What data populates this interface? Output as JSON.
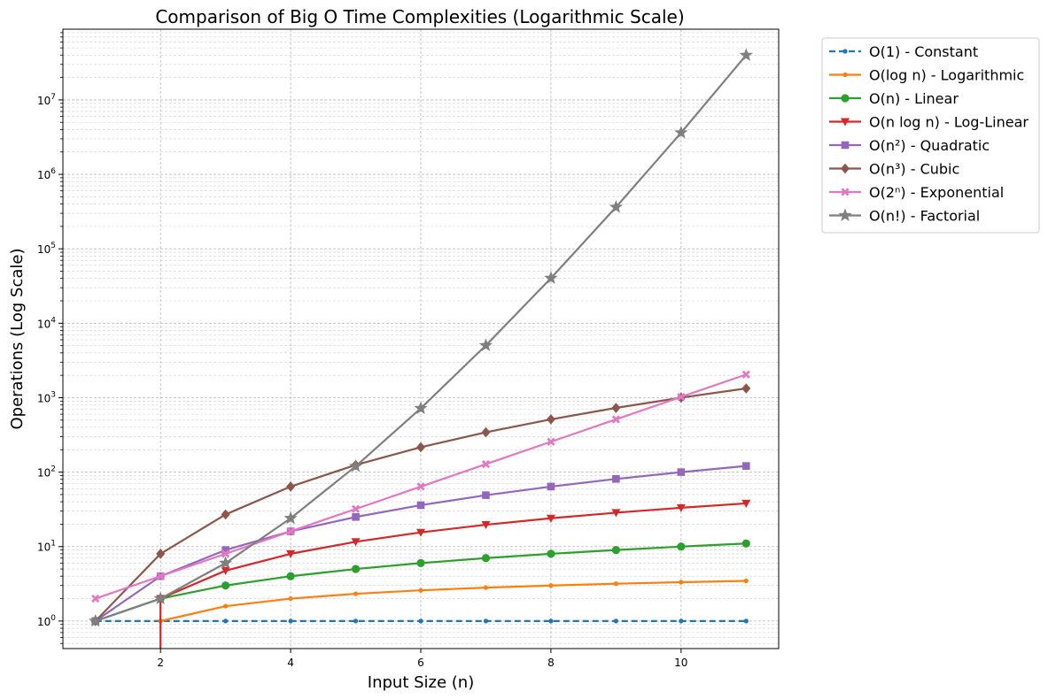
{
  "chart_data": {
    "type": "line",
    "title": "Comparison of Big O Time Complexities (Logarithmic Scale)",
    "xlabel": "Input Size (n)",
    "ylabel": "Operations (Log Scale)",
    "x": [
      1,
      2,
      3,
      4,
      5,
      6,
      7,
      8,
      9,
      10,
      11
    ],
    "xlim": [
      0.5,
      11.5
    ],
    "ylim_log10": [
      -0.37,
      7.95
    ],
    "y_scale": "log",
    "xticks": [
      2,
      4,
      6,
      8,
      10
    ],
    "xtick_labels": [
      "2",
      "4",
      "6",
      "8",
      "10"
    ],
    "yticks_log10": [
      0,
      1,
      2,
      3,
      4,
      5,
      6,
      7
    ],
    "ytick_base": "10",
    "ytick_exponents": [
      "0",
      "1",
      "2",
      "3",
      "4",
      "5",
      "6",
      "7"
    ],
    "grid": "both (major and minor), dashed",
    "legend_position": "outside top-right",
    "series": [
      {
        "name": "O(1) - Constant",
        "color": "#1f77b4",
        "marker": "point",
        "dash": true,
        "x": [
          1,
          2,
          3,
          4,
          5,
          6,
          7,
          8,
          9,
          10,
          11
        ],
        "values": [
          1,
          1,
          1,
          1,
          1,
          1,
          1,
          1,
          1,
          1,
          1
        ]
      },
      {
        "name": "O(log n) - Logarithmic",
        "color": "#ff7f0e",
        "marker": "point",
        "dash": false,
        "x": [
          2,
          3,
          4,
          5,
          6,
          7,
          8,
          9,
          10,
          11
        ],
        "values": [
          1,
          1.585,
          2,
          2.322,
          2.585,
          2.807,
          3,
          3.17,
          3.322,
          3.459
        ]
      },
      {
        "name": "O(n) - Linear",
        "color": "#2ca02c",
        "marker": "circle",
        "dash": false,
        "x": [
          1,
          2,
          3,
          4,
          5,
          6,
          7,
          8,
          9,
          10,
          11
        ],
        "values": [
          1,
          2,
          3,
          4,
          5,
          6,
          7,
          8,
          9,
          10,
          11
        ]
      },
      {
        "name": "O(n log n) - Log-Linear",
        "color": "#d62728",
        "marker": "triangle-down",
        "dash": false,
        "x": [
          2,
          3,
          4,
          5,
          6,
          7,
          8,
          9,
          10,
          11
        ],
        "values": [
          2,
          4.755,
          8,
          11.61,
          15.51,
          19.65,
          24,
          28.53,
          33.22,
          38.05
        ]
      },
      {
        "name": "O(n²) - Quadratic",
        "color": "#9467bd",
        "marker": "square",
        "dash": false,
        "x": [
          1,
          2,
          3,
          4,
          5,
          6,
          7,
          8,
          9,
          10,
          11
        ],
        "values": [
          1,
          4,
          9,
          16,
          25,
          36,
          49,
          64,
          81,
          100,
          121
        ]
      },
      {
        "name": "O(n³) - Cubic",
        "color": "#8c564b",
        "marker": "diamond",
        "dash": false,
        "x": [
          1,
          2,
          3,
          4,
          5,
          6,
          7,
          8,
          9,
          10,
          11
        ],
        "values": [
          1,
          8,
          27,
          64,
          125,
          216,
          343,
          512,
          729,
          1000,
          1331
        ]
      },
      {
        "name": "O(2ⁿ) - Exponential",
        "color": "#e377c2",
        "marker": "x",
        "dash": false,
        "x": [
          1,
          2,
          3,
          4,
          5,
          6,
          7,
          8,
          9,
          10,
          11
        ],
        "values": [
          2,
          4,
          8,
          16,
          32,
          64,
          128,
          256,
          512,
          1024,
          2048
        ]
      },
      {
        "name": "O(n!) - Factorial",
        "color": "#7f7f7f",
        "marker": "star",
        "dash": false,
        "x": [
          1,
          2,
          3,
          4,
          5,
          6,
          7,
          8,
          9,
          10,
          11
        ],
        "values": [
          1,
          2,
          6,
          24,
          120,
          720,
          5040,
          40320,
          362880,
          3628800,
          39916800
        ]
      }
    ]
  }
}
